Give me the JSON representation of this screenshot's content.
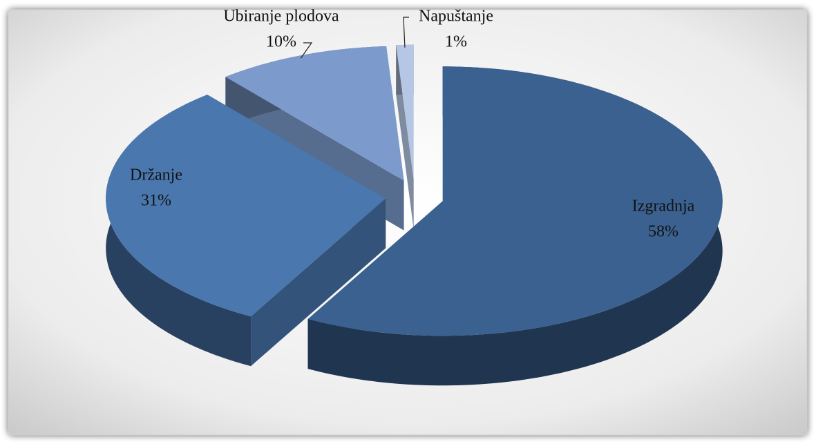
{
  "chart_data": {
    "type": "pie",
    "categories": [
      "Izgradnja",
      "Držanje",
      "Ubiranje plodova",
      "Napuštanje"
    ],
    "values": [
      58,
      31,
      10,
      1
    ],
    "value_labels": [
      "58%",
      "31%",
      "10%",
      "1%"
    ],
    "colors": [
      "#3b6190",
      "#4a77ae",
      "#7c9bcc",
      "#b5c7e5"
    ],
    "three_d": true,
    "exploded": true
  }
}
